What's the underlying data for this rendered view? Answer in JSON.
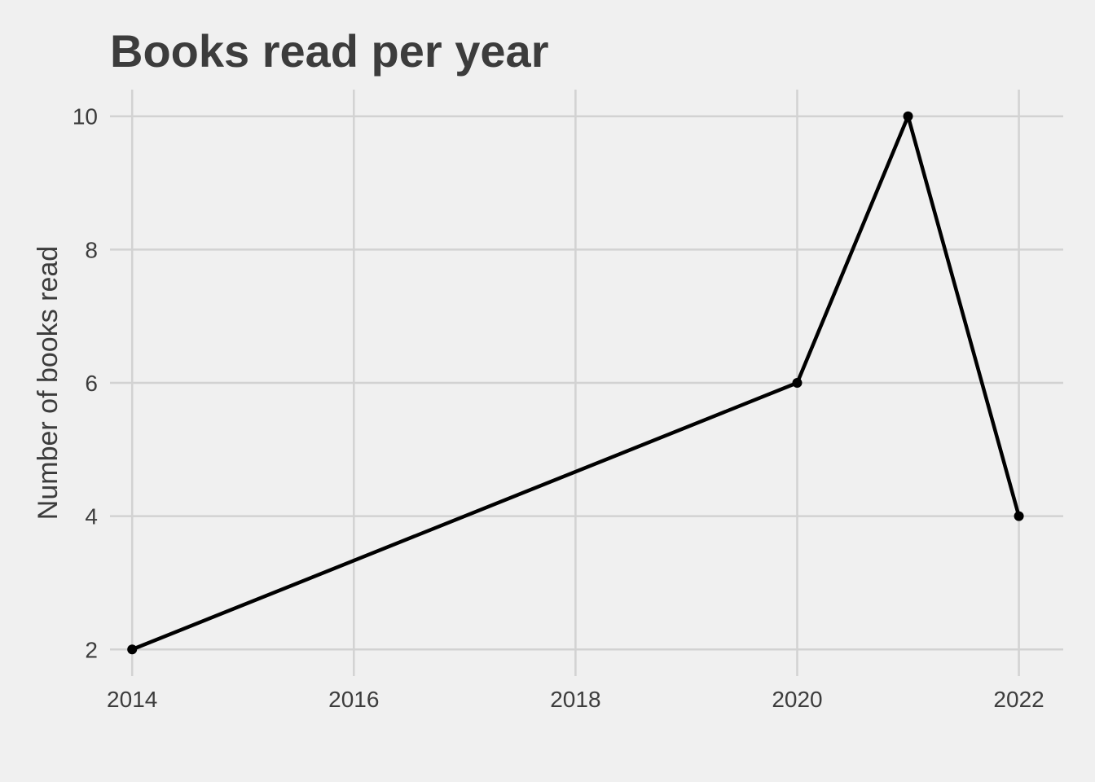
{
  "chart_data": {
    "type": "line",
    "title": "Books read per year",
    "xlabel": "",
    "ylabel": "Number of books read",
    "x": [
      2014,
      2020,
      2021,
      2022
    ],
    "series": [
      {
        "values": [
          2,
          6,
          10,
          4
        ]
      }
    ],
    "x_ticks": [
      2014,
      2016,
      2018,
      2020,
      2022
    ],
    "y_ticks": [
      2,
      4,
      6,
      8,
      10
    ],
    "xlim": [
      2013.8,
      2022.4
    ],
    "ylim": [
      1.6,
      10.4
    ],
    "grid": true,
    "legend": "none",
    "colors": {
      "background": "#f0f0f0",
      "line": "#000000",
      "grid": "#d2d2d2",
      "text": "#3c3c3c"
    }
  }
}
